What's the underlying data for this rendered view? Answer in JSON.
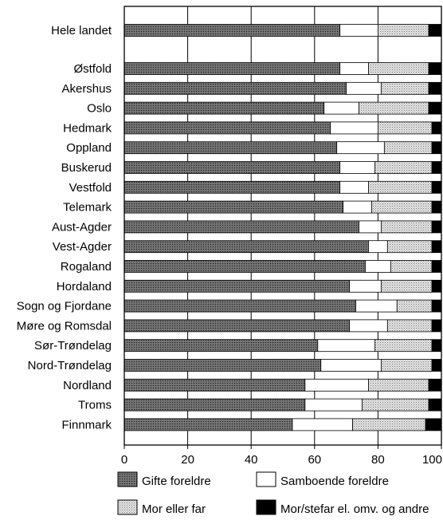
{
  "chart_data": {
    "type": "bar",
    "orientation": "horizontal",
    "stacked": true,
    "title": "",
    "xlabel": "",
    "ylabel": "",
    "xlim": [
      0,
      100
    ],
    "x_ticks": [
      "0",
      "20",
      "40",
      "60",
      "80",
      "100"
    ],
    "grid": "vertical",
    "legend_position": "bottom",
    "categories": [
      "Hele landet",
      "Østfold",
      "Akershus",
      "Oslo",
      "Hedmark",
      "Oppland",
      "Buskerud",
      "Vestfold",
      "Telemark",
      "Aust-Agder",
      "Vest-Agder",
      "Rogaland",
      "Hordaland",
      "Sogn og Fjordane",
      "Møre og Romsdal",
      "Sør-Trøndelag",
      "Nord-Trøndelag",
      "Nordland",
      "Troms",
      "Finnmark"
    ],
    "series": [
      {
        "name": "Gifte foreldre",
        "pattern": "dark-dots",
        "color": "#555555",
        "values": [
          68,
          68,
          70,
          63,
          65,
          67,
          68,
          68,
          69,
          74,
          77,
          76,
          71,
          73,
          71,
          61,
          62,
          57,
          57,
          53
        ]
      },
      {
        "name": "Samboende foreldre",
        "pattern": "white",
        "color": "#ffffff",
        "values": [
          12,
          9,
          11,
          11,
          15,
          15,
          11,
          9,
          9,
          7,
          6,
          8,
          10,
          13,
          12,
          18,
          19,
          20,
          18,
          19
        ]
      },
      {
        "name": "Mor eller far",
        "pattern": "light-dots",
        "color": "#c8c8c8",
        "values": [
          16,
          19,
          15,
          22,
          17,
          15,
          18,
          20,
          19,
          16,
          14,
          13,
          16,
          11,
          14,
          18,
          16,
          19,
          21,
          23
        ]
      },
      {
        "name": "Mor/stefar el. omv. og andre",
        "pattern": "black",
        "color": "#000000",
        "values": [
          4,
          4,
          4,
          4,
          3,
          3,
          3,
          3,
          3,
          3,
          3,
          3,
          3,
          3,
          3,
          3,
          3,
          4,
          4,
          5
        ]
      }
    ]
  }
}
